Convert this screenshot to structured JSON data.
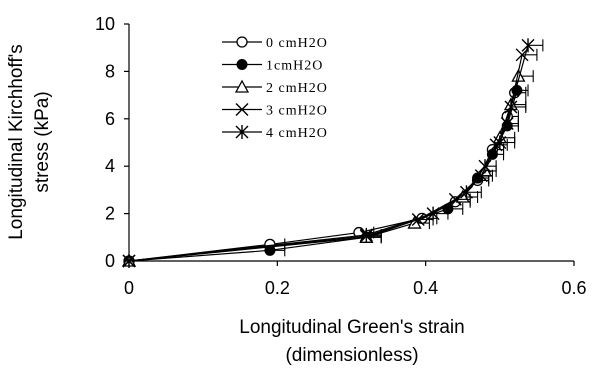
{
  "chart_data": {
    "type": "scatter",
    "xlabel": [
      "Longitudinal Green's strain",
      "(dimensionless)"
    ],
    "ylabel": [
      "Longitudinal Kirchhoff's",
      "stress (kPa)"
    ],
    "xlim": [
      0,
      0.6
    ],
    "ylim": [
      0,
      10
    ],
    "xticks": [
      "0",
      "0.2",
      "0.4",
      "0.6"
    ],
    "yticks": [
      "0",
      "2",
      "4",
      "6",
      "8",
      "10"
    ],
    "legend_position": "top-left",
    "error_bars": "horizontal",
    "series": [
      {
        "name": "0 cmH2O",
        "marker": "open-circle",
        "points": [
          {
            "x": 0,
            "y": 0,
            "xerr": 0
          },
          {
            "x": 0.19,
            "y": 0.7,
            "xerr": 0.02
          },
          {
            "x": 0.31,
            "y": 1.2,
            "xerr": 0.02
          },
          {
            "x": 0.395,
            "y": 1.8,
            "xerr": 0.02
          },
          {
            "x": 0.44,
            "y": 2.5,
            "xerr": 0.02
          },
          {
            "x": 0.47,
            "y": 3.4,
            "xerr": 0.015
          },
          {
            "x": 0.49,
            "y": 4.7,
            "xerr": 0.015
          },
          {
            "x": 0.51,
            "y": 6.1,
            "xerr": 0.015
          },
          {
            "x": 0.52,
            "y": 7.1,
            "xerr": 0.015
          }
        ]
      },
      {
        "name": "1cmH2O",
        "marker": "filled-circle",
        "points": [
          {
            "x": 0,
            "y": 0,
            "xerr": 0
          },
          {
            "x": 0.19,
            "y": 0.45,
            "xerr": 0.02
          },
          {
            "x": 0.32,
            "y": 1.0,
            "xerr": 0.02
          },
          {
            "x": 0.43,
            "y": 2.2,
            "xerr": 0.02
          },
          {
            "x": 0.47,
            "y": 3.5,
            "xerr": 0.015
          },
          {
            "x": 0.49,
            "y": 4.5,
            "xerr": 0.015
          },
          {
            "x": 0.51,
            "y": 5.7,
            "xerr": 0.015
          },
          {
            "x": 0.523,
            "y": 7.2,
            "xerr": 0.015
          }
        ]
      },
      {
        "name": "2 cmH2O",
        "marker": "open-triangle",
        "points": [
          {
            "x": 0,
            "y": 0,
            "xerr": 0
          },
          {
            "x": 0.32,
            "y": 1.0,
            "xerr": 0.02
          },
          {
            "x": 0.385,
            "y": 1.6,
            "xerr": 0.02
          },
          {
            "x": 0.45,
            "y": 2.7,
            "xerr": 0.02
          },
          {
            "x": 0.48,
            "y": 3.8,
            "xerr": 0.015
          },
          {
            "x": 0.5,
            "y": 5.2,
            "xerr": 0.02
          },
          {
            "x": 0.515,
            "y": 6.6,
            "xerr": 0.02
          },
          {
            "x": 0.525,
            "y": 7.8,
            "xerr": 0.02
          }
        ]
      },
      {
        "name": "3 cmH2O",
        "marker": "x",
        "points": [
          {
            "x": 0,
            "y": 0,
            "xerr": 0
          },
          {
            "x": 0.32,
            "y": 1.05,
            "xerr": 0.02
          },
          {
            "x": 0.39,
            "y": 1.75,
            "xerr": 0.02
          },
          {
            "x": 0.44,
            "y": 2.6,
            "xerr": 0.02
          },
          {
            "x": 0.475,
            "y": 3.6,
            "xerr": 0.015
          },
          {
            "x": 0.495,
            "y": 4.9,
            "xerr": 0.015
          },
          {
            "x": 0.51,
            "y": 5.8,
            "xerr": 0.015
          },
          {
            "x": 0.53,
            "y": 8.7,
            "xerr": 0.02
          }
        ]
      },
      {
        "name": "4 cmH2O",
        "marker": "asterisk",
        "points": [
          {
            "x": 0,
            "y": 0,
            "xerr": 0
          },
          {
            "x": 0.32,
            "y": 1.1,
            "xerr": 0.02
          },
          {
            "x": 0.41,
            "y": 2.0,
            "xerr": 0.02
          },
          {
            "x": 0.455,
            "y": 2.9,
            "xerr": 0.02
          },
          {
            "x": 0.48,
            "y": 4.0,
            "xerr": 0.015
          },
          {
            "x": 0.5,
            "y": 5.0,
            "xerr": 0.02
          },
          {
            "x": 0.515,
            "y": 6.5,
            "xerr": 0.02
          },
          {
            "x": 0.538,
            "y": 9.1,
            "xerr": 0.02
          }
        ]
      }
    ]
  }
}
